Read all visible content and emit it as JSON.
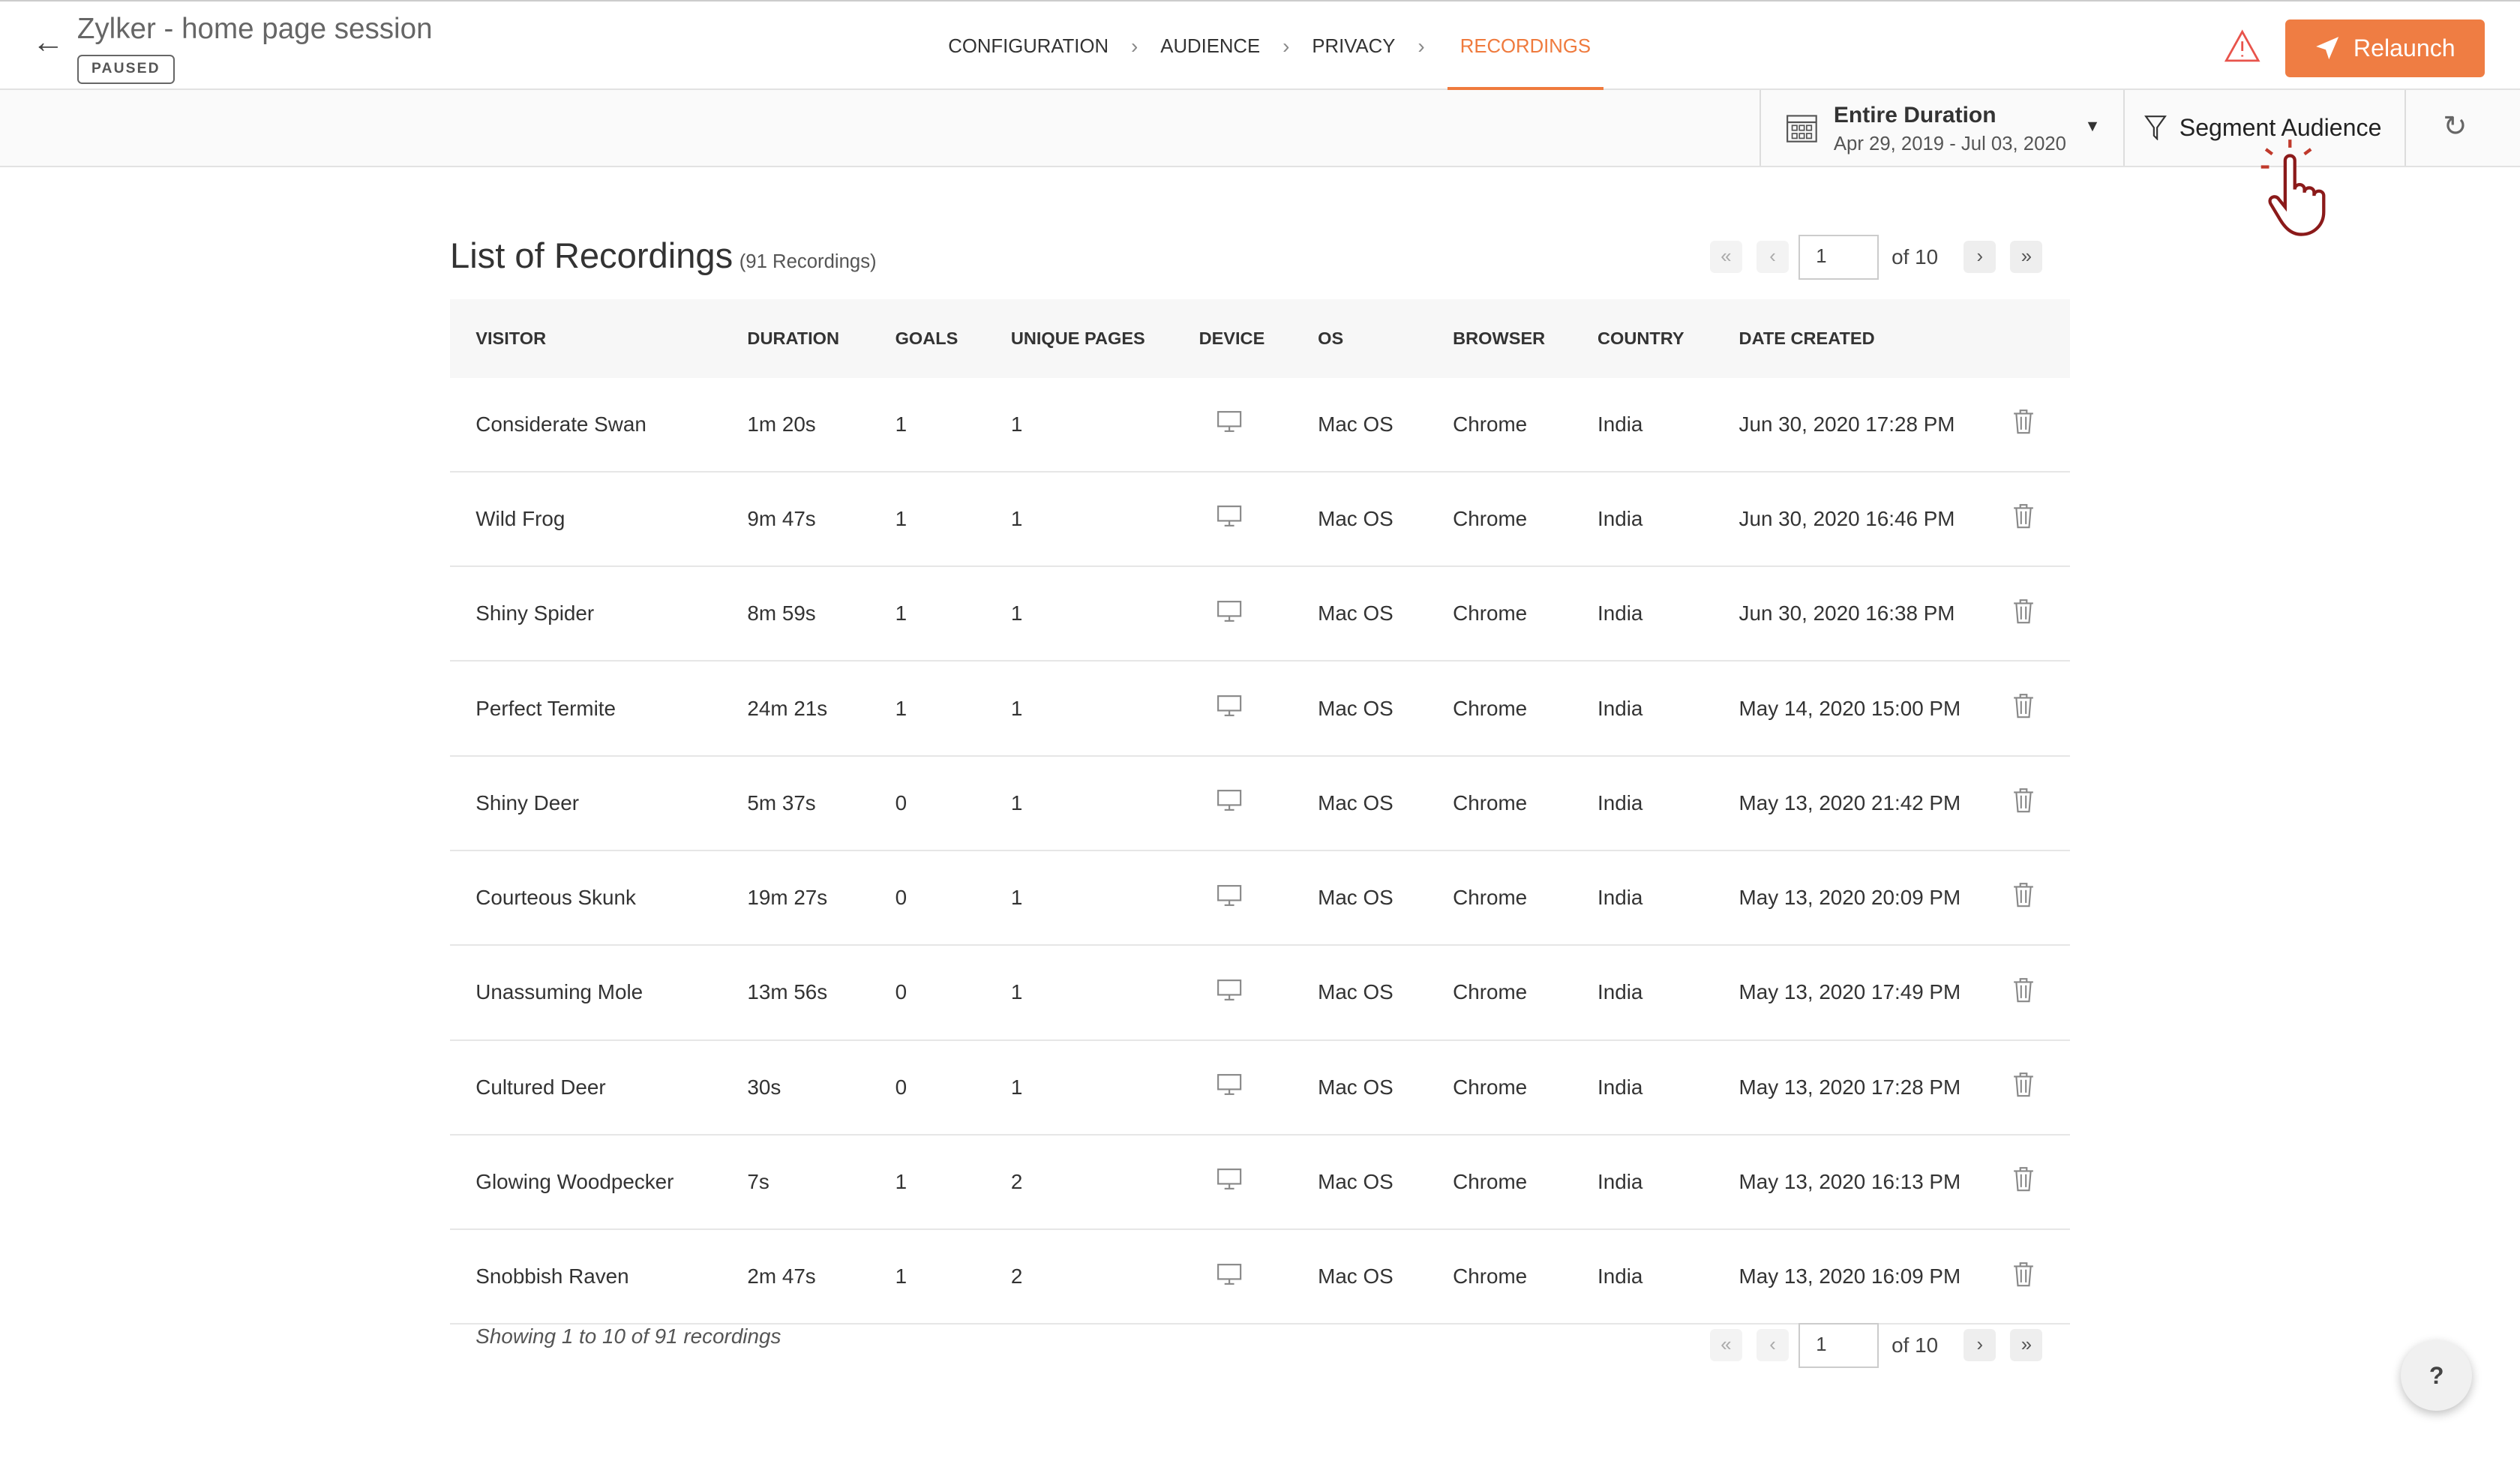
{
  "header": {
    "title": "Zylker - home page session",
    "status": "PAUSED",
    "relaunch_label": "Relaunch",
    "steps": [
      {
        "label": "CONFIGURATION"
      },
      {
        "label": "AUDIENCE"
      },
      {
        "label": "PRIVACY"
      },
      {
        "label": "RECORDINGS",
        "active": true
      }
    ]
  },
  "accent": "#ef7d43",
  "filters": {
    "duration_title": "Entire Duration",
    "duration_range": "Apr 29, 2019 - Jul 03, 2020",
    "segment_label": "Segment Audience"
  },
  "list": {
    "title": "List of Recordings",
    "count": "(91 Recordings)",
    "page": "1",
    "of": "of 10",
    "footer": "Showing 1 to 10 of 91 recordings"
  },
  "columns": [
    "VISITOR",
    "DURATION",
    "GOALS",
    "UNIQUE PAGES",
    "DEVICE",
    "OS",
    "BROWSER",
    "COUNTRY",
    "DATE CREATED"
  ],
  "rows": [
    {
      "visitor": "Considerate Swan",
      "duration": "1m 20s",
      "goals": "1",
      "pages": "1",
      "device": "desktop-icon",
      "os": "Mac OS",
      "browser": "Chrome",
      "country": "India",
      "date": "Jun 30, 2020 17:28 PM"
    },
    {
      "visitor": "Wild Frog",
      "duration": "9m 47s",
      "goals": "1",
      "pages": "1",
      "device": "desktop-icon",
      "os": "Mac OS",
      "browser": "Chrome",
      "country": "India",
      "date": "Jun 30, 2020 16:46 PM"
    },
    {
      "visitor": "Shiny Spider",
      "duration": "8m 59s",
      "goals": "1",
      "pages": "1",
      "device": "desktop-icon",
      "os": "Mac OS",
      "browser": "Chrome",
      "country": "India",
      "date": "Jun 30, 2020 16:38 PM"
    },
    {
      "visitor": "Perfect Termite",
      "duration": "24m 21s",
      "goals": "1",
      "pages": "1",
      "device": "desktop-icon",
      "os": "Mac OS",
      "browser": "Chrome",
      "country": "India",
      "date": "May 14, 2020 15:00 PM"
    },
    {
      "visitor": "Shiny Deer",
      "duration": "5m 37s",
      "goals": "0",
      "pages": "1",
      "device": "desktop-icon",
      "os": "Mac OS",
      "browser": "Chrome",
      "country": "India",
      "date": "May 13, 2020 21:42 PM"
    },
    {
      "visitor": "Courteous Skunk",
      "duration": "19m 27s",
      "goals": "0",
      "pages": "1",
      "device": "desktop-icon",
      "os": "Mac OS",
      "browser": "Chrome",
      "country": "India",
      "date": "May 13, 2020 20:09 PM"
    },
    {
      "visitor": "Unassuming Mole",
      "duration": "13m 56s",
      "goals": "0",
      "pages": "1",
      "device": "desktop-icon",
      "os": "Mac OS",
      "browser": "Chrome",
      "country": "India",
      "date": "May 13, 2020 17:49 PM"
    },
    {
      "visitor": "Cultured Deer",
      "duration": "30s",
      "goals": "0",
      "pages": "1",
      "device": "desktop-icon",
      "os": "Mac OS",
      "browser": "Chrome",
      "country": "India",
      "date": "May 13, 2020 17:28 PM"
    },
    {
      "visitor": "Glowing Woodpecker",
      "duration": "7s",
      "goals": "1",
      "pages": "2",
      "device": "desktop-icon",
      "os": "Mac OS",
      "browser": "Chrome",
      "country": "India",
      "date": "May 13, 2020 16:13 PM"
    },
    {
      "visitor": "Snobbish Raven",
      "duration": "2m 47s",
      "goals": "1",
      "pages": "2",
      "device": "desktop-icon",
      "os": "Mac OS",
      "browser": "Chrome",
      "country": "India",
      "date": "May 13, 2020 16:09 PM"
    }
  ],
  "help_label": "?"
}
